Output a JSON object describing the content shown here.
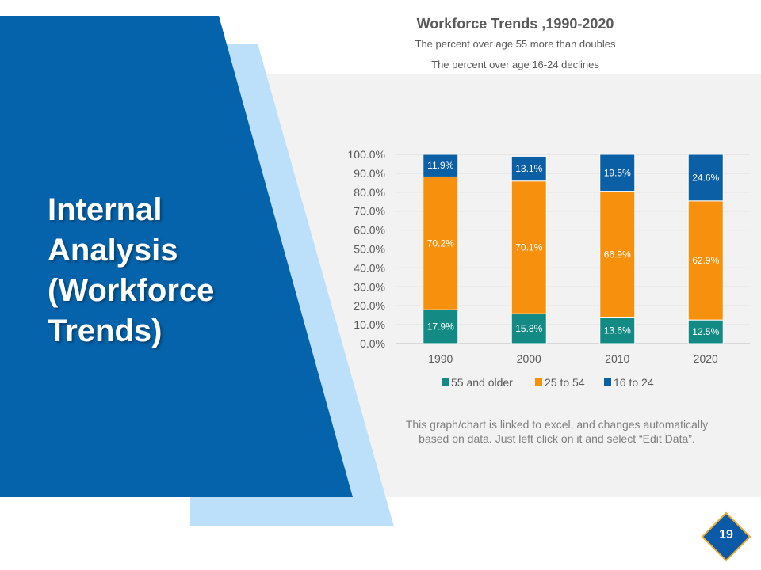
{
  "slide": {
    "title_lines": [
      "Internal",
      "Analysis",
      "(Workforce",
      "Trends)"
    ],
    "note_lines": [
      "This graph/chart is linked to excel, and changes automatically",
      "based on data. Just left click on it and select “Edit Data”."
    ],
    "page_number": "19",
    "colors": {
      "primary_blue": "#0563ab",
      "light_blue": "#bde0fa",
      "panel_gray": "#f2f2f2",
      "badge_blue": "#0a5aa8",
      "badge_border": "#f0a830"
    }
  },
  "chart_data": {
    "type": "bar",
    "stacked": true,
    "title": "Workforce Trends ,1990-2020",
    "subtitles": [
      "The percent over age 55 more than doubles",
      "The percent over age 16-24 declines"
    ],
    "categories": [
      "1990",
      "2000",
      "2010",
      "2020"
    ],
    "series": [
      {
        "name": "55 and older",
        "color": "#138b84",
        "values": [
          17.9,
          15.8,
          13.6,
          12.5
        ],
        "labels": [
          "17.9%",
          "15.8%",
          "13.6%",
          "12.5%"
        ]
      },
      {
        "name": "25 to 54",
        "color": "#f7900d",
        "values": [
          70.2,
          70.1,
          66.9,
          62.9
        ],
        "labels": [
          "70.2%",
          "70.1%",
          "66.9%",
          "62.9%"
        ]
      },
      {
        "name": "16 to 24",
        "color": "#0b5fa5",
        "values": [
          11.9,
          13.1,
          19.5,
          24.6
        ],
        "labels": [
          "11.9%",
          "13.1%",
          "19.5%",
          "24.6%"
        ]
      }
    ],
    "y_ticks": [
      "0.0%",
      "10.0%",
      "20.0%",
      "30.0%",
      "40.0%",
      "50.0%",
      "60.0%",
      "70.0%",
      "80.0%",
      "90.0%",
      "100.0%"
    ],
    "ylim": [
      0,
      100
    ],
    "grid": true,
    "legend": "bottom"
  }
}
